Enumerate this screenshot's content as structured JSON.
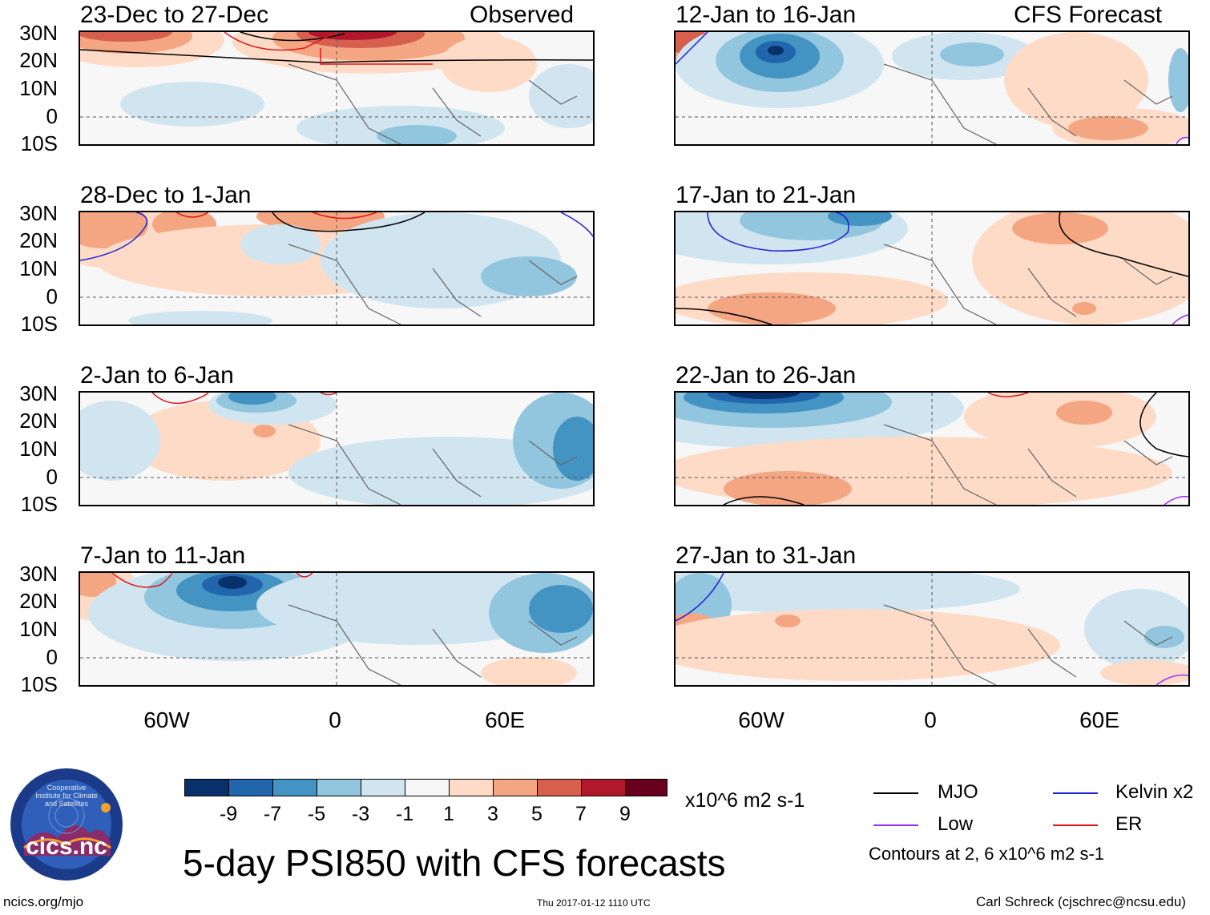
{
  "panels": {
    "left": [
      {
        "title": "23-Dec to 27-Dec",
        "label": "Observed"
      },
      {
        "title": "28-Dec to 1-Jan",
        "label": ""
      },
      {
        "title": "2-Jan to 6-Jan",
        "label": ""
      },
      {
        "title": "7-Jan to 11-Jan",
        "label": ""
      }
    ],
    "right": [
      {
        "title": "12-Jan to 16-Jan",
        "label": "CFS Forecast"
      },
      {
        "title": "17-Jan to 21-Jan",
        "label": ""
      },
      {
        "title": "22-Jan to 26-Jan",
        "label": ""
      },
      {
        "title": "27-Jan to 31-Jan",
        "label": ""
      }
    ]
  },
  "lat_labels": [
    "30N",
    "20N",
    "10N",
    "0",
    "10S"
  ],
  "lon_labels": [
    "60W",
    "0",
    "60E"
  ],
  "colorbar": {
    "unit": "x10^6 m2 s-1",
    "ticks": [
      "-9",
      "-7",
      "-5",
      "-3",
      "-1",
      "1",
      "3",
      "5",
      "7",
      "9"
    ],
    "colors": [
      "#08306b",
      "#2166ac",
      "#4393c3",
      "#92c5de",
      "#d1e5f0",
      "#f7f7f7",
      "#fddbc7",
      "#f4a582",
      "#d6604d",
      "#b2182b",
      "#67001f"
    ]
  },
  "legend": {
    "items": [
      {
        "label": "MJO",
        "color": "#000000"
      },
      {
        "label": "Kelvin x2",
        "color": "#1f1fd6"
      },
      {
        "label": "Low",
        "color": "#9b30ff"
      },
      {
        "label": "ER",
        "color": "#e01818"
      }
    ],
    "contours_note": "Contours at 2, 6 x10^6 m2 s-1"
  },
  "title": "5-day PSI850 with CFS forecasts",
  "logo_text": "cics.nc",
  "logo_ring_text": "Cooperative Institute for Climate and Satellites",
  "footer": {
    "url": "ncics.org/mjo",
    "timestamp": "Thu 2017-01-12 1110 UTC",
    "author": "Carl Schreck (cjschrec@ncsu.edu)"
  }
}
